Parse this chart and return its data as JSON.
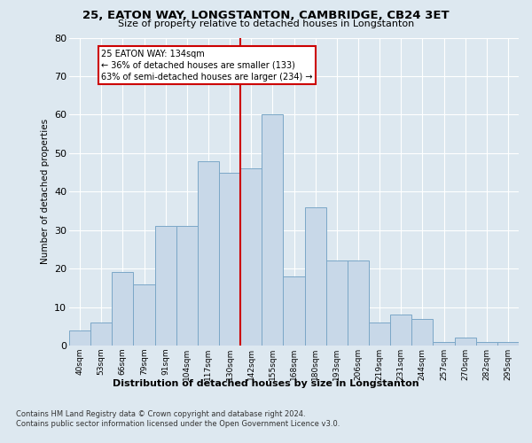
{
  "title1": "25, EATON WAY, LONGSTANTON, CAMBRIDGE, CB24 3ET",
  "title2": "Size of property relative to detached houses in Longstanton",
  "xlabel": "Distribution of detached houses by size in Longstanton",
  "ylabel": "Number of detached properties",
  "categories": [
    "40sqm",
    "53sqm",
    "66sqm",
    "79sqm",
    "91sqm",
    "104sqm",
    "117sqm",
    "130sqm",
    "142sqm",
    "155sqm",
    "168sqm",
    "180sqm",
    "193sqm",
    "206sqm",
    "219sqm",
    "231sqm",
    "244sqm",
    "257sqm",
    "270sqm",
    "282sqm",
    "295sqm"
  ],
  "values": [
    4,
    6,
    19,
    16,
    31,
    31,
    48,
    45,
    46,
    60,
    18,
    36,
    22,
    22,
    6,
    8,
    7,
    1,
    2,
    1,
    1
  ],
  "bar_color": "#c8d8e8",
  "bar_edge_color": "#7ba7c7",
  "vline_idx": 7,
  "vline_color": "#cc0000",
  "annotation_text": "25 EATON WAY: 134sqm\n← 36% of detached houses are smaller (133)\n63% of semi-detached houses are larger (234) →",
  "annotation_box_color": "#cc0000",
  "ylim": [
    0,
    80
  ],
  "yticks": [
    0,
    10,
    20,
    30,
    40,
    50,
    60,
    70,
    80
  ],
  "footer1": "Contains HM Land Registry data © Crown copyright and database right 2024.",
  "footer2": "Contains public sector information licensed under the Open Government Licence v3.0.",
  "bg_color": "#dde8f0",
  "plot_bg_color": "#dde8f0",
  "grid_color": "#ffffff"
}
